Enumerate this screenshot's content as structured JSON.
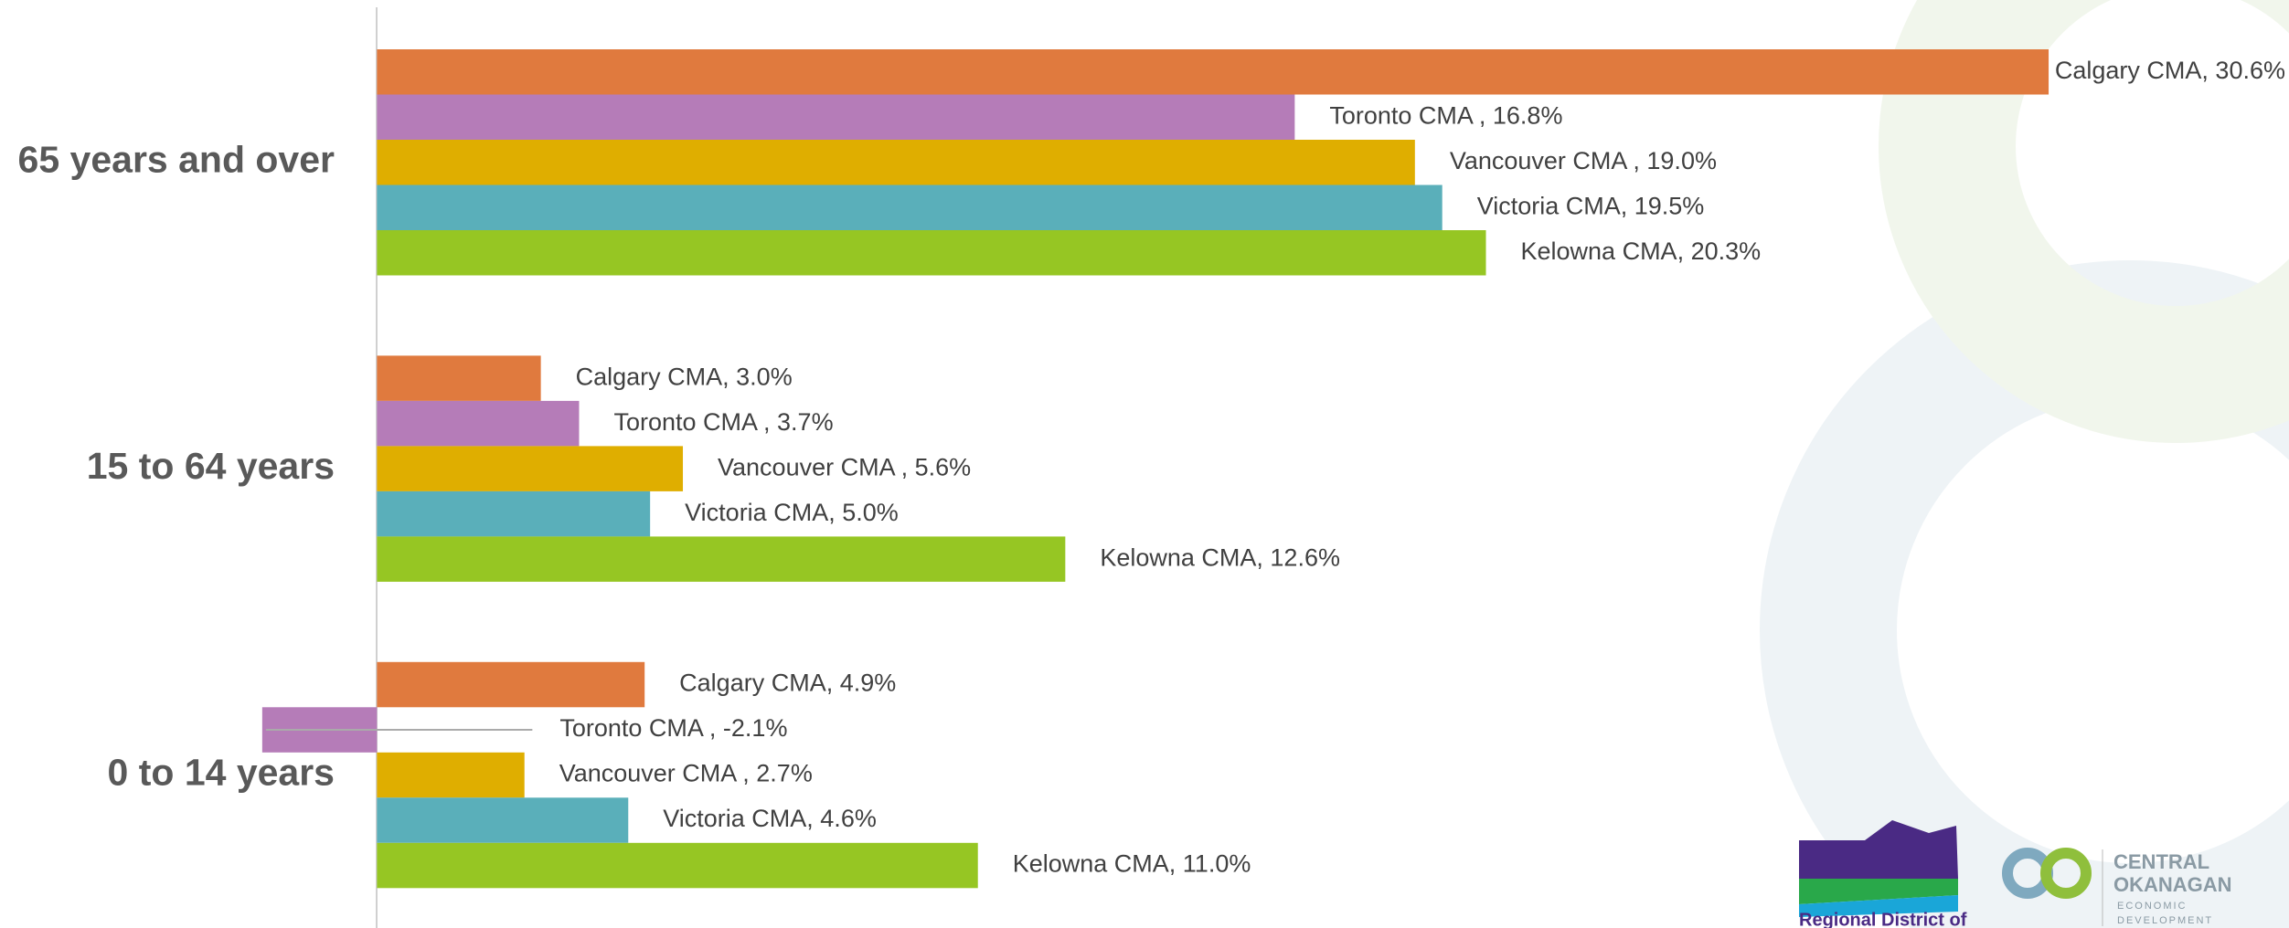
{
  "chart_data": {
    "type": "hbar",
    "categories": [
      "65 years and over",
      "15 to 64 years",
      "0 to 14 years"
    ],
    "series": [
      {
        "color": "#E07A3E",
        "values": [
          30.6,
          3.0,
          4.9
        ],
        "value_labels": [
          "Calgary CMA, 30.6%",
          "Calgary CMA, 3.0%",
          "Calgary CMA, 4.9%"
        ]
      },
      {
        "color": "#B57CB8",
        "values": [
          16.8,
          3.7,
          -2.1
        ],
        "value_labels": [
          "Toronto CMA , 16.8%",
          "Toronto CMA , 3.7%",
          "Toronto CMA , -2.1%"
        ]
      },
      {
        "color": "#DFAE00",
        "values": [
          19.0,
          5.6,
          2.7
        ],
        "value_labels": [
          "Vancouver CMA , 19.0%",
          "Vancouver CMA , 5.6%",
          "Vancouver CMA , 2.7%"
        ]
      },
      {
        "color": "#5AAFBA",
        "values": [
          19.5,
          5.0,
          4.6
        ],
        "value_labels": [
          "Victoria CMA, 19.5%",
          "Victoria CMA, 5.0%",
          "Victoria CMA, 4.6%"
        ]
      },
      {
        "color": "#96C623",
        "values": [
          20.3,
          12.6,
          11.0
        ],
        "value_labels": [
          "Kelowna CMA, 20.3%",
          "Kelowna CMA, 12.6%",
          "Kelowna CMA, 11.0%"
        ]
      }
    ],
    "xlim": [
      -6.9,
      35
    ]
  },
  "logos": {
    "regional": "Regional District of",
    "central": [
      "CENTRAL",
      "OKANAGAN"
    ],
    "economic": [
      "ECONOMIC",
      "DEVELOPMENT"
    ]
  }
}
